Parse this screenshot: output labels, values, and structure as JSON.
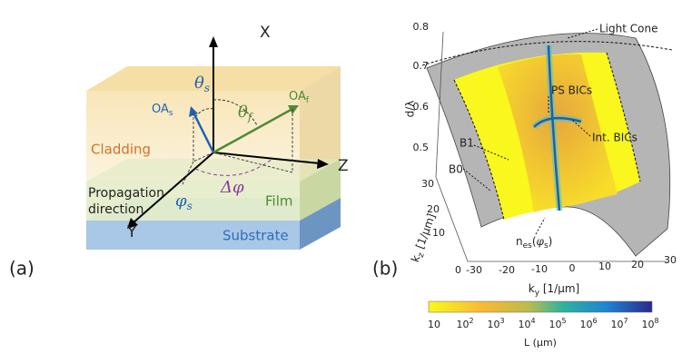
{
  "panel_a": {
    "label": "(a)",
    "axis_x": "X",
    "axis_y": "Y",
    "axis_z": "Z",
    "theta_s": {
      "symbol": "θ",
      "sub": "s"
    },
    "theta_f": {
      "symbol": "θ",
      "sub": "f"
    },
    "oa_s": {
      "text": "OA",
      "sub": "s"
    },
    "oa_f": {
      "text": "OA",
      "sub": "f"
    },
    "delta_phi": "Δφ",
    "phi_s": {
      "symbol": "φ",
      "sub": "s"
    },
    "layers": {
      "cladding": "Cladding",
      "film": "Film",
      "substrate": "Substrate"
    },
    "propagation": [
      "Propagation",
      "direction"
    ]
  },
  "panel_b": {
    "label": "(b)",
    "annotations": {
      "light_cone": "Light Cone",
      "ps_bics": "PS BICs",
      "int_bics": "Int. BICs",
      "b1": "B1",
      "b0": "B0",
      "n_es": {
        "text": "n",
        "sub": "es",
        "open": "(",
        "arg": "φ",
        "arg_sub": "s",
        "close": ")"
      }
    },
    "d_axis": {
      "label": "d/λ",
      "ticks": [
        "0.8",
        "0.7",
        "0.6",
        "0.5"
      ]
    },
    "kz_axis": {
      "label": {
        "text": "k",
        "sub": "z",
        "unit": " [1/μm]"
      },
      "ticks": [
        "30",
        "20",
        "10",
        "0"
      ]
    },
    "ky_axis": {
      "label": {
        "text": "k",
        "sub": "y",
        "unit": " [1/μm]"
      },
      "ticks": [
        "-30",
        "-20",
        "-10",
        "0",
        "10",
        "20",
        "30"
      ]
    },
    "colorbar": {
      "label": "L (μm)",
      "ticks": [
        {
          "base": "10"
        },
        {
          "base": "10",
          "exp": "2"
        },
        {
          "base": "10",
          "exp": "3"
        },
        {
          "base": "10",
          "exp": "4"
        },
        {
          "base": "10",
          "exp": "5"
        },
        {
          "base": "10",
          "exp": "6"
        },
        {
          "base": "10",
          "exp": "7"
        },
        {
          "base": "10",
          "exp": "8"
        }
      ]
    }
  }
}
